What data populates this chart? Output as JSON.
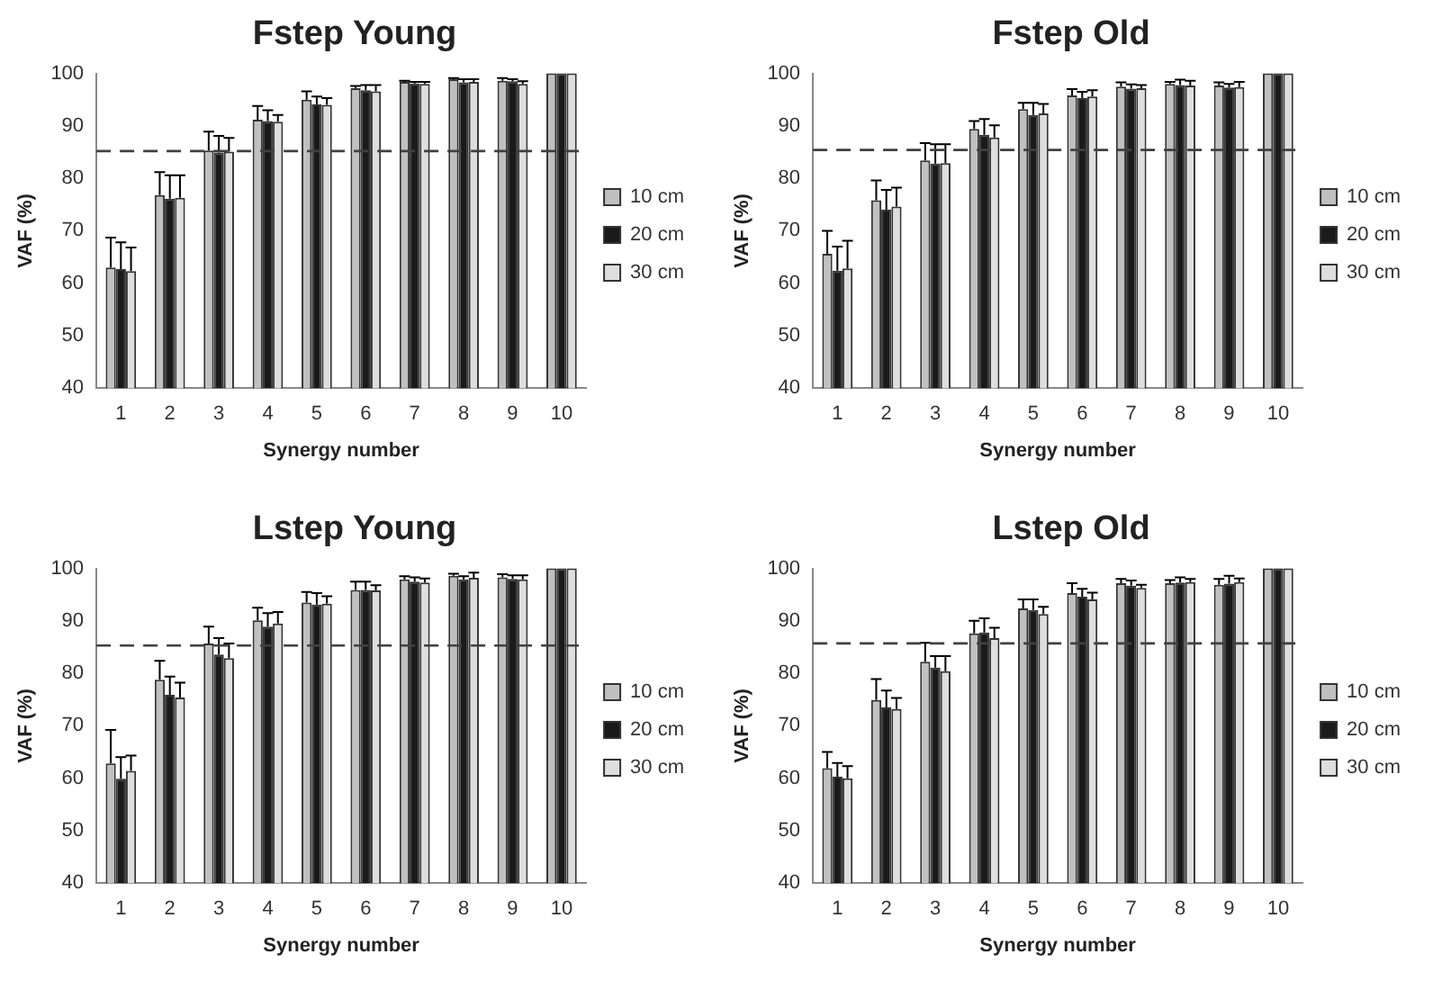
{
  "chart_data": [
    {
      "type": "bar",
      "title": "Fstep Young",
      "xlabel": "Synergy number",
      "ylabel": "VAF (%)",
      "categories": [
        "1",
        "2",
        "3",
        "4",
        "5",
        "6",
        "7",
        "8",
        "9",
        "10"
      ],
      "ylim": [
        40,
        100
      ],
      "yticks": [
        40,
        50,
        60,
        70,
        80,
        90,
        100
      ],
      "grid": false,
      "legend": "right",
      "ref_lines": [
        {
          "axis": "y",
          "value": 85.2,
          "line_style": "dashed",
          "color": "#404040"
        }
      ],
      "series": [
        {
          "name": "10 cm",
          "color": "#c0c0c0",
          "values": [
            63,
            76.8,
            85.3,
            91.2,
            95,
            97.2,
            98.4,
            98.9,
            98.6,
            100
          ],
          "errors": [
            [
              63,
              68.7
            ],
            [
              76.8,
              81.2
            ],
            [
              85.3,
              88.9
            ],
            [
              91.2,
              93.8
            ],
            [
              95,
              96.6
            ],
            [
              97.2,
              97.6
            ],
            [
              98.4,
              98.6
            ],
            [
              98.9,
              99.1
            ],
            [
              98.6,
              99.1
            ],
            null
          ]
        },
        {
          "name": "20 cm",
          "color": "#1a1a1a",
          "values": [
            62.7,
            76.1,
            84.9,
            90.9,
            94.1,
            96.8,
            98.1,
            98.3,
            98.5,
            100
          ],
          "errors": [
            [
              62.7,
              67.8
            ],
            [
              76.1,
              80.6
            ],
            [
              84.9,
              88.1
            ],
            [
              90.9,
              93
            ],
            [
              94.1,
              95.6
            ],
            [
              96.8,
              97.8
            ],
            [
              98.1,
              98.4
            ],
            [
              98.3,
              98.9
            ],
            [
              98.5,
              98.9
            ],
            null
          ]
        },
        {
          "name": "30 cm",
          "color": "#dedede",
          "values": [
            62.3,
            76.3,
            85.1,
            90.8,
            94,
            96.6,
            98,
            98.4,
            98,
            100
          ],
          "errors": [
            [
              62.3,
              66.8
            ],
            [
              76.3,
              80.6
            ],
            [
              85.1,
              87.7
            ],
            [
              90.8,
              92.1
            ],
            [
              94,
              95.3
            ],
            [
              96.6,
              97.8
            ],
            [
              98,
              98.4
            ],
            [
              98.4,
              98.9
            ],
            [
              98,
              98.5
            ],
            null
          ]
        }
      ]
    },
    {
      "type": "bar",
      "title": "Fstep Old",
      "xlabel": "Synergy number",
      "ylabel": "VAF (%)",
      "categories": [
        "1",
        "2",
        "3",
        "4",
        "5",
        "6",
        "7",
        "8",
        "9",
        "10"
      ],
      "ylim": [
        40,
        100
      ],
      "yticks": [
        40,
        50,
        60,
        70,
        80,
        90,
        100
      ],
      "grid": false,
      "legend": "right",
      "ref_lines": [
        {
          "axis": "y",
          "value": 85.4,
          "line_style": "dashed",
          "color": "#404040"
        }
      ],
      "series": [
        {
          "name": "10 cm",
          "color": "#c0c0c0",
          "values": [
            65.6,
            75.8,
            83.4,
            89.4,
            93.2,
            95.8,
            97.5,
            98,
            97.7,
            100
          ],
          "errors": [
            [
              65.6,
              70
            ],
            [
              75.8,
              79.6
            ],
            [
              83.4,
              86.7
            ],
            [
              89.4,
              90.9
            ],
            [
              93.2,
              94.4
            ],
            [
              95.8,
              97
            ],
            [
              97.5,
              98.3
            ],
            [
              98,
              98.4
            ],
            [
              97.7,
              98.3
            ],
            null
          ]
        },
        {
          "name": "20 cm",
          "color": "#1a1a1a",
          "values": [
            62.4,
            74,
            82.8,
            88.3,
            92.1,
            95.3,
            97.1,
            97.8,
            97.3,
            100
          ],
          "errors": [
            [
              62.4,
              67
            ],
            [
              74,
              77.8
            ],
            [
              82.8,
              86.5
            ],
            [
              88.3,
              91.3
            ],
            [
              92.1,
              94.4
            ],
            [
              95.3,
              96.5
            ],
            [
              97.1,
              97.9
            ],
            [
              97.8,
              98.8
            ],
            [
              97.3,
              98
            ],
            null
          ]
        },
        {
          "name": "30 cm",
          "color": "#dedede",
          "values": [
            62.8,
            74.6,
            82.9,
            87.8,
            92.4,
            95.6,
            97.2,
            97.7,
            97.4,
            100
          ],
          "errors": [
            [
              62.8,
              68.1
            ],
            [
              74.6,
              78.2
            ],
            [
              82.9,
              86.5
            ],
            [
              87.8,
              90.1
            ],
            [
              92.4,
              94.2
            ],
            [
              95.6,
              96.8
            ],
            [
              97.2,
              97.8
            ],
            [
              97.7,
              98.6
            ],
            [
              97.4,
              98.4
            ],
            null
          ]
        }
      ]
    },
    {
      "type": "bar",
      "title": "Lstep Young",
      "xlabel": "Synergy number",
      "ylabel": "VAF (%)",
      "categories": [
        "1",
        "2",
        "3",
        "4",
        "5",
        "6",
        "7",
        "8",
        "9",
        "10"
      ],
      "ylim": [
        40,
        100
      ],
      "yticks": [
        40,
        50,
        60,
        70,
        80,
        90,
        100
      ],
      "grid": false,
      "legend": "right",
      "ref_lines": [
        {
          "axis": "y",
          "value": 85.3,
          "line_style": "dashed",
          "color": "#404040"
        }
      ],
      "series": [
        {
          "name": "10 cm",
          "color": "#c0c0c0",
          "values": [
            62.8,
            78.8,
            85.7,
            90.1,
            93.5,
            95.9,
            97.9,
            98.6,
            98.3,
            100
          ],
          "errors": [
            [
              62.8,
              69.2
            ],
            [
              78.8,
              82.4
            ],
            [
              85.7,
              88.9
            ],
            [
              90.1,
              92.5
            ],
            [
              93.5,
              95.5
            ],
            [
              95.9,
              97.5
            ],
            [
              97.9,
              98.5
            ],
            [
              98.6,
              99
            ],
            [
              98.3,
              98.9
            ],
            null
          ]
        },
        {
          "name": "20 cm",
          "color": "#1a1a1a",
          "values": [
            59.9,
            75.9,
            83.6,
            88.9,
            93.1,
            95.9,
            97.5,
            97.9,
            98,
            100
          ],
          "errors": [
            [
              59.9,
              64
            ],
            [
              75.9,
              79.4
            ],
            [
              83.6,
              86.7
            ],
            [
              88.9,
              91.5
            ],
            [
              93.1,
              95.3
            ],
            [
              95.9,
              97.5
            ],
            [
              97.5,
              98.3
            ],
            [
              97.9,
              98.5
            ],
            [
              98,
              98.7
            ],
            null
          ]
        },
        {
          "name": "30 cm",
          "color": "#dedede",
          "values": [
            61.4,
            75.4,
            82.9,
            89.5,
            93.3,
            95.8,
            97.3,
            98.2,
            97.9,
            100
          ],
          "errors": [
            [
              61.4,
              64.3
            ],
            [
              75.4,
              78.2
            ],
            [
              82.9,
              85.7
            ],
            [
              89.5,
              91.7
            ],
            [
              93.3,
              94.7
            ],
            [
              95.8,
              96.8
            ],
            [
              97.3,
              98.1
            ],
            [
              98.2,
              99.2
            ],
            [
              97.9,
              98.7
            ],
            null
          ]
        }
      ]
    },
    {
      "type": "bar",
      "title": "Lstep Old",
      "xlabel": "Synergy number",
      "ylabel": "VAF (%)",
      "categories": [
        "1",
        "2",
        "3",
        "4",
        "5",
        "6",
        "7",
        "8",
        "9",
        "10"
      ],
      "ylim": [
        40,
        100
      ],
      "yticks": [
        40,
        50,
        60,
        70,
        80,
        90,
        100
      ],
      "grid": false,
      "legend": "right",
      "ref_lines": [
        {
          "axis": "y",
          "value": 85.7,
          "line_style": "dashed",
          "color": "#404040"
        }
      ],
      "series": [
        {
          "name": "10 cm",
          "color": "#c0c0c0",
          "values": [
            61.9,
            74.9,
            82.2,
            87.6,
            92.4,
            95.3,
            97.2,
            97.2,
            96.9,
            100
          ],
          "errors": [
            [
              61.9,
              65
            ],
            [
              74.9,
              78.9
            ],
            [
              82.2,
              85.8
            ],
            [
              87.6,
              90
            ],
            [
              92.4,
              94.1
            ],
            [
              95.3,
              97.2
            ],
            [
              97.2,
              98
            ],
            [
              97.2,
              97.8
            ],
            [
              96.9,
              98
            ],
            null
          ]
        },
        {
          "name": "20 cm",
          "color": "#1a1a1a",
          "values": [
            60.3,
            73.5,
            81.1,
            87.8,
            92.1,
            94.6,
            96.7,
            97.3,
            97.1,
            100
          ],
          "errors": [
            [
              60.3,
              62.9
            ],
            [
              73.5,
              76.7
            ],
            [
              81.1,
              83.3
            ],
            [
              87.8,
              90.5
            ],
            [
              92.1,
              94.1
            ],
            [
              94.6,
              96.1
            ],
            [
              96.7,
              97.7
            ],
            [
              97.3,
              98.3
            ],
            [
              97.1,
              98.6
            ],
            null
          ]
        },
        {
          "name": "30 cm",
          "color": "#dedede",
          "values": [
            60,
            73.2,
            80.4,
            86.7,
            91.3,
            94.1,
            96.3,
            97.4,
            97.4,
            100
          ],
          "errors": [
            [
              60,
              62.3
            ],
            [
              73.2,
              75.3
            ],
            [
              80.4,
              83.3
            ],
            [
              86.7,
              88.7
            ],
            [
              91.3,
              92.7
            ],
            [
              94.1,
              95.4
            ],
            [
              96.3,
              96.9
            ],
            [
              97.4,
              98
            ],
            [
              97.4,
              98.1
            ],
            null
          ]
        }
      ]
    }
  ]
}
